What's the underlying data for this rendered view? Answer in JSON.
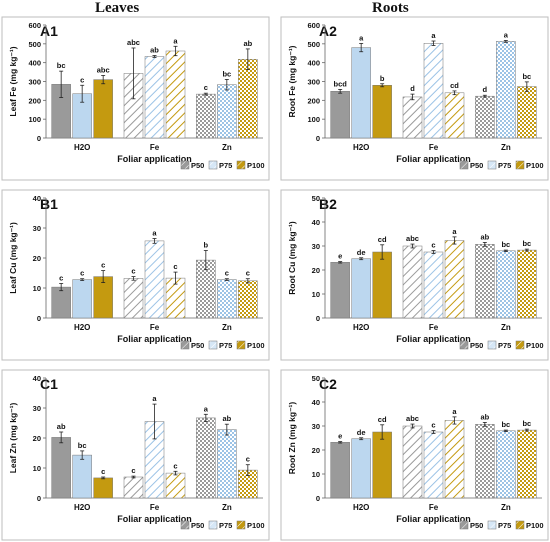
{
  "figure": {
    "columns": [
      "Leaves",
      "Roots"
    ],
    "legend": [
      {
        "label": "P50",
        "fill": "#9a9a9a",
        "pattern": "diagonal"
      },
      {
        "label": "P75",
        "fill": "#c9dff2",
        "pattern": "diagonal"
      },
      {
        "label": "P100",
        "fill": "#c49a10",
        "pattern": "diagonal"
      }
    ],
    "pattern_styles": {
      "solid_group": "H2O",
      "diagonal_group": "Fe",
      "dotted_group": "Zn"
    }
  },
  "chart_data": [
    {
      "panel": "A1",
      "type": "bar",
      "xlabel": "Foliar application",
      "ylabel": "Leaf Fe (mg kg⁻¹)",
      "ylim": [
        0,
        600
      ],
      "yticks": [
        0,
        100,
        200,
        300,
        400,
        500,
        600
      ],
      "categories": [
        "H2O",
        "Fe",
        "Zn"
      ],
      "series": [
        {
          "name": "P50",
          "values": [
            285,
            343,
            233
          ],
          "errors": [
            70,
            135,
            5
          ],
          "letters": [
            "bc",
            "abc",
            "c"
          ]
        },
        {
          "name": "P75",
          "values": [
            235,
            433,
            283
          ],
          "errors": [
            45,
            5,
            28
          ],
          "letters": [
            "c",
            "ab",
            "bc"
          ]
        },
        {
          "name": "P100",
          "values": [
            310,
            462,
            418
          ],
          "errors": [
            22,
            25,
            55
          ],
          "letters": [
            "abc",
            "a",
            "ab"
          ]
        }
      ]
    },
    {
      "panel": "A2",
      "type": "bar",
      "xlabel": "Foliar application",
      "ylabel": "Root Fe (mg kg⁻¹)",
      "ylim": [
        0,
        600
      ],
      "yticks": [
        0,
        100,
        200,
        300,
        400,
        500,
        600
      ],
      "categories": [
        "H2O",
        "Fe",
        "Zn"
      ],
      "series": [
        {
          "name": "P50",
          "values": [
            248,
            218,
            222
          ],
          "errors": [
            10,
            15,
            5
          ],
          "letters": [
            "bcd",
            "d",
            "d"
          ]
        },
        {
          "name": "P75",
          "values": [
            480,
            503,
            513
          ],
          "errors": [
            22,
            12,
            5
          ],
          "letters": [
            "a",
            "a",
            "a"
          ]
        },
        {
          "name": "P100",
          "values": [
            280,
            240,
            273
          ],
          "errors": [
            8,
            10,
            25
          ],
          "letters": [
            "b",
            "cd",
            "bc"
          ]
        }
      ]
    },
    {
      "panel": "B1",
      "type": "bar",
      "xlabel": "Foliar application",
      "ylabel": "Leaf Cu (mg kg⁻¹)",
      "ylim": [
        0,
        40
      ],
      "yticks": [
        0,
        10,
        20,
        30,
        40
      ],
      "categories": [
        "H2O",
        "Fe",
        "Zn"
      ],
      "series": [
        {
          "name": "P50",
          "values": [
            10.3,
            13.2,
            19.3
          ],
          "errors": [
            1.2,
            0.6,
            3.2
          ],
          "letters": [
            "c",
            "c",
            "b"
          ]
        },
        {
          "name": "P75",
          "values": [
            12.8,
            25.7,
            12.8
          ],
          "errors": [
            0.3,
            0.8,
            0.3
          ],
          "letters": [
            "c",
            "a",
            "c"
          ]
        },
        {
          "name": "P100",
          "values": [
            13.8,
            13.3,
            12.4
          ],
          "errors": [
            2.0,
            2.0,
            0.7
          ],
          "letters": [
            "c",
            "c",
            "c"
          ]
        }
      ]
    },
    {
      "panel": "B2",
      "type": "bar",
      "xlabel": "Foliar application",
      "ylabel": "Root Cu (mg kg⁻¹)",
      "ylim": [
        0,
        50
      ],
      "yticks": [
        0,
        10,
        20,
        30,
        40,
        50
      ],
      "categories": [
        "H2O",
        "Fe",
        "Zn"
      ],
      "series": [
        {
          "name": "P50",
          "values": [
            23.2,
            30.0,
            30.7
          ],
          "errors": [
            0.3,
            0.8,
            0.8
          ],
          "letters": [
            "e",
            "abc",
            "ab"
          ]
        },
        {
          "name": "P75",
          "values": [
            24.7,
            27.5,
            28.0
          ],
          "errors": [
            0.4,
            0.6,
            0.3
          ],
          "letters": [
            "de",
            "c",
            "bc"
          ]
        },
        {
          "name": "P100",
          "values": [
            27.5,
            32.3,
            28.3
          ],
          "errors": [
            3.0,
            1.5,
            0.4
          ],
          "letters": [
            "cd",
            "a",
            "bc"
          ]
        }
      ]
    },
    {
      "panel": "C1",
      "type": "bar",
      "xlabel": "Foliar application",
      "ylabel": "Leaf Zn (mg kg⁻¹)",
      "ylim": [
        0,
        40
      ],
      "yticks": [
        0,
        10,
        20,
        30,
        40
      ],
      "categories": [
        "H2O",
        "Fe",
        "Zn"
      ],
      "series": [
        {
          "name": "P50",
          "values": [
            20.2,
            7.0,
            26.7
          ],
          "errors": [
            1.8,
            0.3,
            1.2
          ],
          "letters": [
            "ab",
            "c",
            "a"
          ]
        },
        {
          "name": "P75",
          "values": [
            14.3,
            25.5,
            22.8
          ],
          "errors": [
            1.4,
            5.8,
            1.8
          ],
          "letters": [
            "bc",
            "a",
            "ab"
          ]
        },
        {
          "name": "P100",
          "values": [
            6.7,
            8.3,
            9.3
          ],
          "errors": [
            0.3,
            0.6,
            1.8
          ],
          "letters": [
            "c",
            "c",
            "c"
          ]
        }
      ]
    },
    {
      "panel": "C2",
      "type": "bar",
      "xlabel": "Foliar application",
      "ylabel": "Root Zn (mg kg⁻¹)",
      "ylim": [
        0,
        50
      ],
      "yticks": [
        0,
        10,
        20,
        30,
        40,
        50
      ],
      "categories": [
        "H2O",
        "Fe",
        "Zn"
      ],
      "series": [
        {
          "name": "P50",
          "values": [
            23.2,
            30.0,
            30.7
          ],
          "errors": [
            0.3,
            0.8,
            0.8
          ],
          "letters": [
            "e",
            "abc",
            "ab"
          ]
        },
        {
          "name": "P75",
          "values": [
            24.7,
            27.5,
            28.0
          ],
          "errors": [
            0.4,
            0.6,
            0.3
          ],
          "letters": [
            "de",
            "c",
            "bc"
          ]
        },
        {
          "name": "P100",
          "values": [
            27.5,
            32.3,
            28.3
          ],
          "errors": [
            3.0,
            1.5,
            0.4
          ],
          "letters": [
            "cd",
            "a",
            "bc"
          ]
        }
      ]
    }
  ]
}
